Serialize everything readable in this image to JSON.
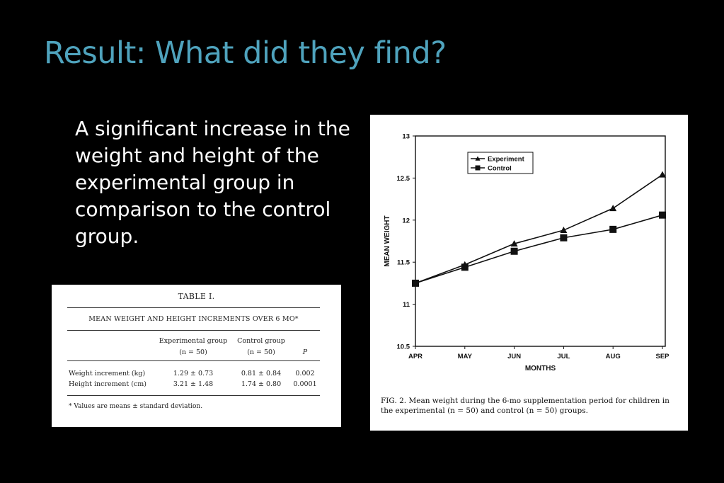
{
  "slide": {
    "title": "Result: What did they find?",
    "body": "A significant increase in the weight and height of the experimental group in comparison to the control group."
  },
  "table": {
    "title": "TABLE I.",
    "subtitle": "MEAN WEIGHT AND HEIGHT INCREMENTS OVER 6 MO*",
    "columns": [
      {
        "line1": "Experimental group",
        "line2": "(n = 50)"
      },
      {
        "line1": "Control group",
        "line2": "(n = 50)"
      },
      {
        "line1": "",
        "line2": "P"
      }
    ],
    "rows": [
      {
        "label": "Weight increment (kg)",
        "experimental": "1.29 ± 0.73",
        "control": "0.81 ± 0.84",
        "p": "0.002"
      },
      {
        "label": "Height increment (cm)",
        "experimental": "3.21 ± 1.48",
        "control": "1.74 ± 0.80",
        "p": "0.0001"
      }
    ],
    "footnote": "* Values are means ± standard deviation."
  },
  "figure": {
    "caption": "FIG. 2. Mean weight during the 6-mo supplementation period for children in the experimental (n = 50) and control (n = 50) groups."
  },
  "chart_data": {
    "type": "line",
    "xlabel": "MONTHS",
    "ylabel": "MEAN WEIGHT",
    "x": [
      "APR",
      "MAY",
      "JUN",
      "JUL",
      "AUG",
      "SEP"
    ],
    "ylim": [
      10.5,
      13
    ],
    "yticks": [
      "10.5",
      "11",
      "11.5",
      "12",
      "12.5",
      "13"
    ],
    "legend_position": "top-left",
    "grid": false,
    "series": [
      {
        "name": "Experiment",
        "marker": "triangle",
        "values": [
          11.25,
          11.47,
          11.72,
          11.88,
          12.14,
          12.54
        ]
      },
      {
        "name": "Control",
        "marker": "square",
        "values": [
          11.25,
          11.44,
          11.63,
          11.79,
          11.89,
          12.06
        ]
      }
    ]
  }
}
